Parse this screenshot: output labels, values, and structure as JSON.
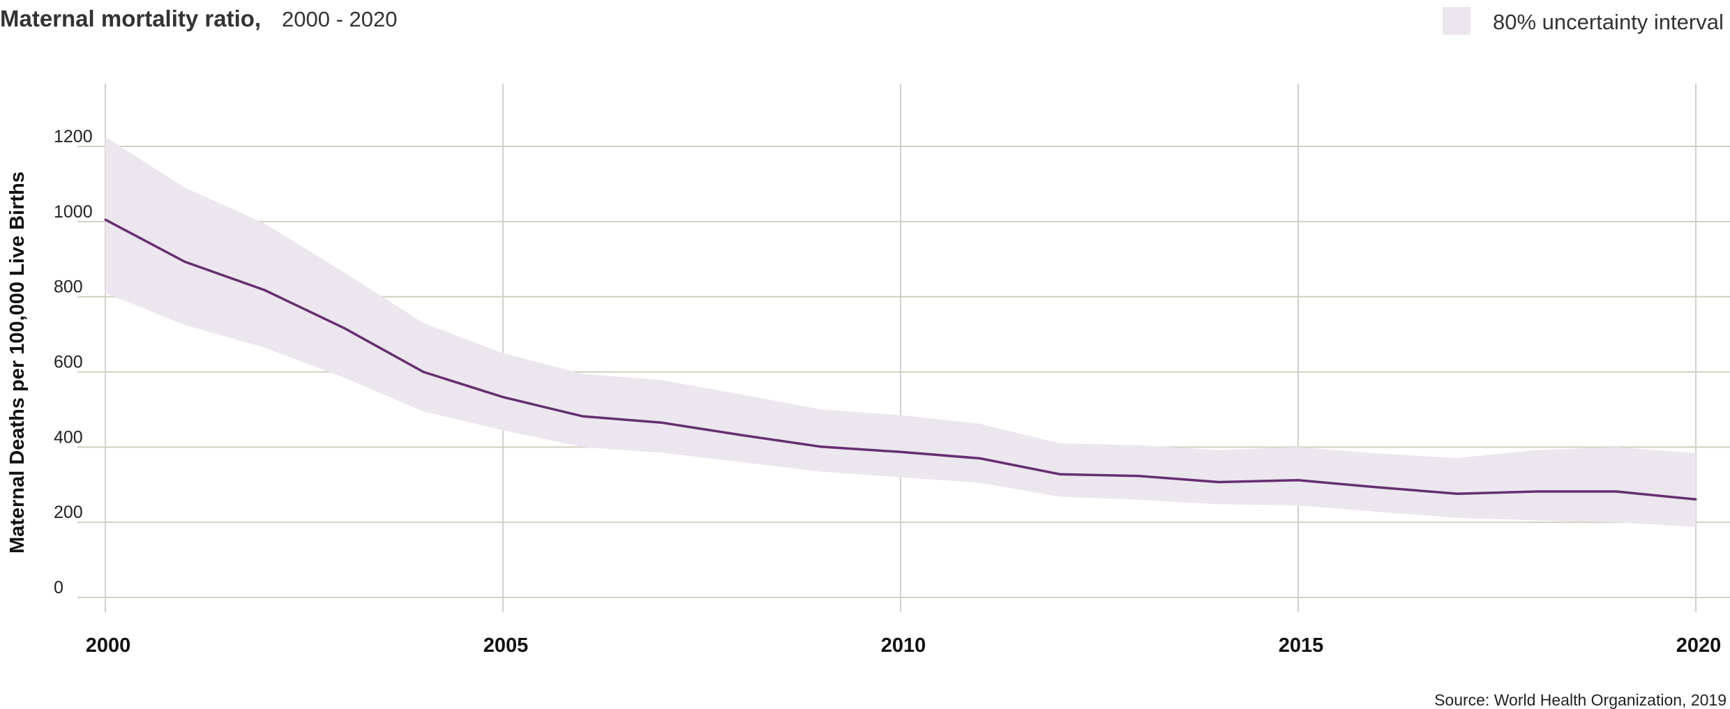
{
  "header": {
    "title": "Maternal mortality ratio,",
    "subtitle": "2000 - 2020"
  },
  "legend": {
    "label": "80% uncertainty interval",
    "swatch_color": "#ece6ee"
  },
  "source": "Source: World Health Organization, 2019",
  "colors": {
    "line": "#652f6f",
    "band": "#ece6ee",
    "grid_h": "#d2cfbe",
    "grid_v": "#d3d1cc"
  },
  "chart_data": {
    "type": "line",
    "title": "Maternal mortality ratio,",
    "subtitle": "2000 - 2020",
    "xlabel": "",
    "ylabel": "Maternal Deaths per 100,000 Live Births",
    "x": [
      2000,
      2001,
      2002,
      2003,
      2004,
      2005,
      2006,
      2007,
      2008,
      2009,
      2010,
      2011,
      2012,
      2013,
      2014,
      2015,
      2016,
      2017,
      2018,
      2019,
      2020
    ],
    "series": [
      {
        "values": [
          1005,
          893,
          818,
          717,
          600,
          533,
          482,
          465,
          432,
          401,
          387,
          370,
          328,
          323,
          307,
          312,
          293,
          276,
          282,
          282,
          261
        ]
      }
    ],
    "band": {
      "name": "80% uncertainty interval",
      "upper": [
        1225,
        1090,
        995,
        865,
        730,
        650,
        595,
        578,
        540,
        500,
        485,
        462,
        410,
        405,
        392,
        400,
        383,
        371,
        392,
        400,
        384
      ],
      "lower": [
        810,
        725,
        665,
        585,
        495,
        445,
        400,
        385,
        360,
        335,
        320,
        305,
        268,
        260,
        248,
        245,
        228,
        212,
        205,
        200,
        188
      ]
    },
    "xticks": [
      "2000",
      "2005",
      "2010",
      "2015",
      "2020"
    ],
    "yticks": [
      "0",
      "200",
      "400",
      "600",
      "800",
      "1000",
      "1200"
    ],
    "xlim": [
      2000,
      2020
    ],
    "ylim": [
      0,
      1200
    ],
    "grid": true,
    "legend_position": "top-right"
  }
}
